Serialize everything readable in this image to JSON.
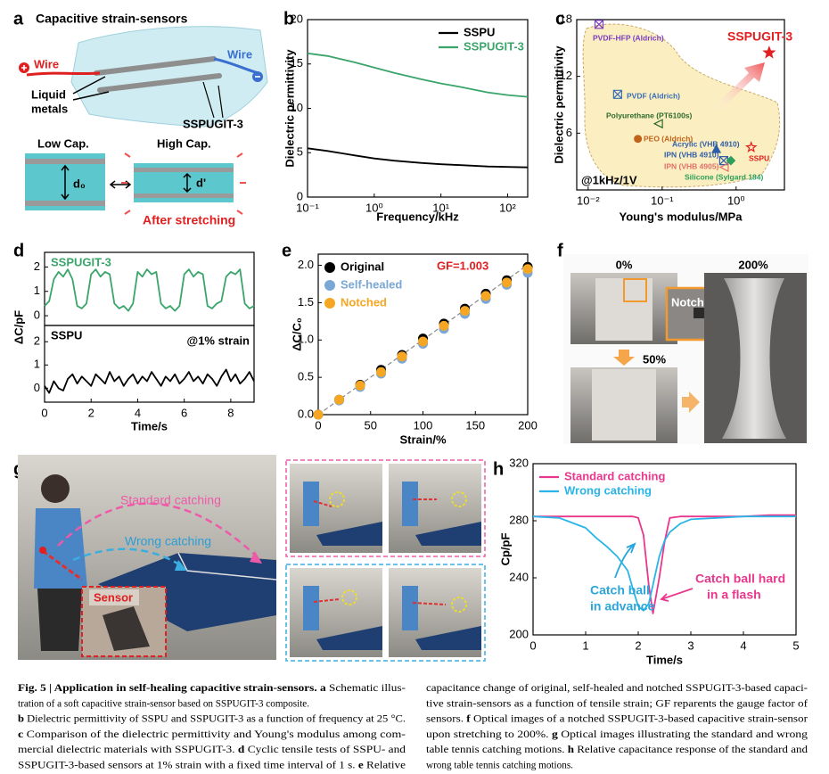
{
  "schematic": {
    "panel": "a",
    "title": "Capacitive strain-sensors",
    "wire_left": "Wire",
    "wire_right": "Wire",
    "electrode_label": [
      "Liquid",
      "metals"
    ],
    "matrix_label": "SSPUGIT-3",
    "low_cap": "Low Cap.",
    "high_cap": "High Cap.",
    "gap_before": "d₀",
    "gap_after": "d'",
    "stretch_label": "After stretching"
  },
  "chart_data": [
    {
      "panel": "b",
      "type": "line",
      "xlabel": "Frequency/kHz",
      "ylabel": "Dielectric permittivity",
      "xscale": "log",
      "x": [
        0.1,
        0.2,
        0.5,
        1,
        2,
        5,
        10,
        20,
        50,
        100,
        200
      ],
      "xlim": [
        0.1,
        200
      ],
      "xticks": [
        {
          "value": 0.1,
          "label": "10⁻¹"
        },
        {
          "value": 1,
          "label": "10⁰"
        },
        {
          "value": 10,
          "label": "10¹"
        },
        {
          "value": 100,
          "label": "10²"
        }
      ],
      "ylim": [
        0,
        20
      ],
      "yticks": [
        0,
        5,
        10,
        15,
        20
      ],
      "legend": "upper right",
      "series": [
        {
          "name": "SSPU",
          "color": "#000000",
          "values": [
            5.5,
            5.2,
            4.7,
            4.35,
            4.1,
            3.85,
            3.7,
            3.6,
            3.45,
            3.4,
            3.35
          ]
        },
        {
          "name": "SSPUGIT-3",
          "color": "#3aa56a",
          "values": [
            16.2,
            15.9,
            15.2,
            14.6,
            14.0,
            13.3,
            12.8,
            12.4,
            11.8,
            11.5,
            11.3
          ]
        }
      ]
    },
    {
      "panel": "c",
      "type": "scatter",
      "xlabel": "Young's modulus/MPa",
      "ylabel": "Dielectric permittivity",
      "xscale": "log",
      "xlim": [
        0.007,
        4.5
      ],
      "xticks": [
        {
          "value": 0.01,
          "label": "10⁻²"
        },
        {
          "value": 0.1,
          "label": "10⁻¹"
        },
        {
          "value": 1,
          "label": "10⁰"
        }
      ],
      "ylim": [
        0,
        18
      ],
      "yticks": [
        6,
        12,
        18
      ],
      "annotation": "@1kHz/1V",
      "series": [
        {
          "name": "PVDF-HFP (Aldrich)",
          "color": "#7b3fc4",
          "marker": "x-square",
          "x": [
            0.014
          ],
          "values": [
            17.5
          ]
        },
        {
          "name": "PVDF (Aldrich)",
          "color": "#3a6fb5",
          "marker": "x-square",
          "x": [
            0.025
          ],
          "values": [
            10.1
          ]
        },
        {
          "name": "Polyurethane (PT6100s)",
          "color": "#2e6b2e",
          "marker": "triangle-left-open",
          "x": [
            0.089
          ],
          "values": [
            7.0
          ]
        },
        {
          "name": "PEO (Aldrich)",
          "color": "#c0621a",
          "marker": "circle",
          "x": [
            0.047
          ],
          "values": [
            5.4
          ]
        },
        {
          "name": "Acrylic (VHB 4910)",
          "color": "#2f5ea8",
          "marker": "triangle-up",
          "x": [
            0.54
          ],
          "values": [
            4.3
          ]
        },
        {
          "name": "IPN (VHB 4910)",
          "color": "#2f5ea8",
          "marker": "x-square",
          "x": [
            0.68
          ],
          "values": [
            3.1
          ]
        },
        {
          "name": "IPN (VHB 4905)",
          "color": "#e0706a",
          "marker": "triangle-left-open",
          "x": [
            0.69
          ],
          "values": [
            2.4
          ]
        },
        {
          "name": "Silicone (Sylgard 184)",
          "color": "#2aa05a",
          "marker": "diamond",
          "x": [
            0.85
          ],
          "values": [
            3.1
          ]
        },
        {
          "name": "SSPU",
          "color": "#e02020",
          "marker": "star-open",
          "x": [
            1.6
          ],
          "values": [
            4.5
          ]
        },
        {
          "name": "SSPUGIT-3",
          "color": "#e02020",
          "marker": "star",
          "x": [
            2.8
          ],
          "values": [
            14.5
          ]
        }
      ]
    },
    {
      "panel": "d",
      "type": "line",
      "ylabel": "ΔC/pF",
      "legend": "upper left",
      "x": [
        0,
        0.2,
        0.4,
        0.6,
        0.8,
        1,
        1.2,
        1.4,
        1.6,
        1.8,
        2,
        2.2,
        2.4,
        2.6,
        2.8,
        3,
        3.2,
        3.4,
        3.6,
        3.8,
        4,
        4.2,
        4.4,
        4.6,
        4.8,
        5,
        5.2,
        5.4,
        5.6,
        5.8,
        6,
        6.2,
        6.4,
        6.6,
        6.8,
        7,
        7.2,
        7.4,
        7.6,
        7.8,
        8,
        8.2,
        8.4,
        8.6,
        8.8,
        9
      ],
      "xlim": [
        0,
        9
      ],
      "ylim": [
        -0.4,
        2.6
      ],
      "yticks": [
        0,
        1,
        2
      ],
      "series": [
        {
          "name": "SSPUGIT-3",
          "color": "#3aa56a",
          "values": [
            0.4,
            0.6,
            1.5,
            1.8,
            1.6,
            1.9,
            1.5,
            0.4,
            0.3,
            0.5,
            1.7,
            1.9,
            1.6,
            1.8,
            1.7,
            0.5,
            0.3,
            0.4,
            0.2,
            0.5,
            1.8,
            1.6,
            1.9,
            1.7,
            1.8,
            0.5,
            0.3,
            0.4,
            0.2,
            0.4,
            1.7,
            1.9,
            1.6,
            1.8,
            1.7,
            0.4,
            0.3,
            0.5,
            0.6,
            1.6,
            1.8,
            1.7,
            1.9,
            0.5,
            0.3,
            0.4
          ]
        }
      ]
    },
    {
      "type": "line",
      "xlabel": "Time/s",
      "annotation": "@1% strain",
      "legend": "upper left",
      "x": [
        0,
        0.2,
        0.4,
        0.6,
        0.8,
        1,
        1.2,
        1.4,
        1.6,
        1.8,
        2,
        2.2,
        2.4,
        2.6,
        2.8,
        3,
        3.2,
        3.4,
        3.6,
        3.8,
        4,
        4.2,
        4.4,
        4.6,
        4.8,
        5,
        5.2,
        5.4,
        5.6,
        5.8,
        6,
        6.2,
        6.4,
        6.6,
        6.8,
        7,
        7.2,
        7.4,
        7.6,
        7.8,
        8,
        8.2,
        8.4,
        8.6,
        8.8,
        9
      ],
      "xlim": [
        0,
        9
      ],
      "xticks": [
        0,
        2,
        4,
        6,
        8
      ],
      "ylim": [
        -0.6,
        2.7
      ],
      "yticks": [
        0,
        1,
        2
      ],
      "series": [
        {
          "name": "SSPU",
          "color": "#000000",
          "values": [
            0.1,
            -0.2,
            0.3,
            0.0,
            -0.1,
            0.4,
            0.6,
            0.2,
            0.5,
            0.3,
            0.1,
            0.6,
            0.4,
            0.2,
            0.7,
            0.3,
            0.5,
            0.1,
            0.4,
            0.6,
            0.2,
            0.5,
            0.3,
            0.7,
            0.4,
            0.1,
            0.5,
            0.3,
            0.6,
            0.2,
            0.4,
            0.7,
            0.3,
            0.5,
            0.2,
            0.6,
            0.4,
            0.1,
            0.5,
            0.8,
            0.3,
            0.6,
            0.2,
            0.4,
            0.7,
            0.3
          ]
        }
      ]
    },
    {
      "panel": "e",
      "type": "scatter",
      "xlabel": "Strain/%",
      "ylabel": "ΔC/C₀",
      "annotation": "GF=1.003",
      "legend": "upper left",
      "x": [
        0,
        20,
        40,
        60,
        80,
        100,
        120,
        140,
        160,
        180,
        200
      ],
      "xlim": [
        0,
        200
      ],
      "xticks": [
        0,
        50,
        100,
        150,
        200
      ],
      "ylim": [
        0,
        2.15
      ],
      "yticks": [
        {
          "value": 0,
          "label": "0.0"
        },
        0.5,
        {
          "value": 1,
          "label": "1.0"
        },
        1.5,
        {
          "value": 2,
          "label": "2.0"
        }
      ],
      "fit": {
        "x": [
          0,
          200
        ],
        "values": [
          0,
          2.006
        ]
      },
      "series": [
        {
          "name": "Original",
          "color": "#000000",
          "marker": "circle",
          "values": [
            0,
            0.2,
            0.4,
            0.6,
            0.8,
            1.02,
            1.22,
            1.42,
            1.62,
            1.8,
            1.98
          ]
        },
        {
          "name": "Self-healed",
          "color": "#7ba7d6",
          "marker": "circle",
          "values": [
            0,
            0.19,
            0.37,
            0.55,
            0.75,
            0.95,
            1.15,
            1.35,
            1.55,
            1.74,
            1.9
          ]
        },
        {
          "name": "Notched",
          "color": "#f5a623",
          "marker": "circle",
          "values": [
            0,
            0.2,
            0.39,
            0.57,
            0.78,
            0.98,
            1.19,
            1.39,
            1.59,
            1.77,
            1.95
          ]
        }
      ]
    },
    {
      "panel": "h",
      "type": "line",
      "xlabel": "Time/s",
      "ylabel": "Cp/pF",
      "legend": "upper left",
      "x": [
        0,
        0.5,
        1,
        1.2,
        1.4,
        1.6,
        1.8,
        1.9,
        2.0,
        2.1,
        2.2,
        2.28,
        2.4,
        2.5,
        2.6,
        2.8,
        3,
        3.5,
        4,
        4.5,
        5
      ],
      "xlim": [
        0,
        5
      ],
      "xticks": [
        0,
        1,
        2,
        3,
        4,
        5
      ],
      "ylim": [
        200,
        320
      ],
      "yticks": [
        200,
        240,
        280,
        320
      ],
      "series": [
        {
          "name": "Standard catching",
          "color": "#e8378c",
          "values": [
            283,
            283,
            283,
            283,
            283,
            283,
            283,
            283,
            282,
            270,
            235,
            215,
            240,
            265,
            282,
            283,
            283,
            283,
            283,
            284,
            284
          ]
        },
        {
          "name": "Wrong catching",
          "color": "#29b5e8",
          "values": [
            283,
            282,
            275,
            268,
            262,
            255,
            245,
            232,
            220,
            217,
            222,
            235,
            255,
            266,
            272,
            278,
            281,
            282,
            283,
            283,
            283
          ]
        }
      ],
      "annotations": [
        {
          "lines": [
            "Catch ball",
            "in advance"
          ],
          "color": "#2aa6dc"
        },
        {
          "lines": [
            "Catch ball hard",
            "in a flash"
          ],
          "color": "#e8378c"
        }
      ]
    }
  ],
  "photos_f": {
    "panel": "f",
    "labels": [
      "0%",
      "50%",
      "200%"
    ],
    "inset_label": "Notch"
  },
  "photos_g": {
    "panel": "g",
    "standard": "Standard catching",
    "wrong": "Wrong catching",
    "sensor": "Sensor"
  },
  "caption": {
    "left": [
      [
        {
          "bold": "Fig. 5 | Application in self-healing capacitive strain-sensors. a"
        },
        " Schematic illus-"
      ],
      [
        "tration of a soft capacitive strain-sensor based on SSPUGIT-3 composite."
      ],
      [
        {
          "bold": "b"
        },
        " Dielectric permittivity of SSPU and SSPUGIT-3 as a function of frequency at 25 °C."
      ],
      [
        {
          "bold": "c"
        },
        " Comparison of the dielectric permittivity and Young's modulus among com-"
      ],
      [
        "mercial dielectric materials with SSPUGIT-3. ",
        {
          "bold": "d"
        },
        " Cyclic tensile tests of SSPU- and"
      ],
      [
        "SSPUGIT-3-based sensors at 1% strain with a fixed time interval of 1 s. ",
        {
          "bold": "e"
        },
        " Relative"
      ]
    ],
    "right": [
      [
        "capacitance change of original, self-healed and notched SSPUGIT-3-based capaci-"
      ],
      [
        "tive strain-sensors as a function of tensile strain; GF reparents the gauge factor of"
      ],
      [
        "sensors. ",
        {
          "bold": "f"
        },
        " Optical images of a notched SSPUGIT-3-based capacitive strain-sensor"
      ],
      [
        "upon stretching to 200%. ",
        {
          "bold": "g"
        },
        " Optical images illustrating the standard and wrong"
      ],
      [
        "table tennis catching motions. ",
        {
          "bold": "h"
        },
        " Relative capacitance response of the standard and"
      ],
      [
        "wrong table tennis catching motions."
      ]
    ]
  }
}
